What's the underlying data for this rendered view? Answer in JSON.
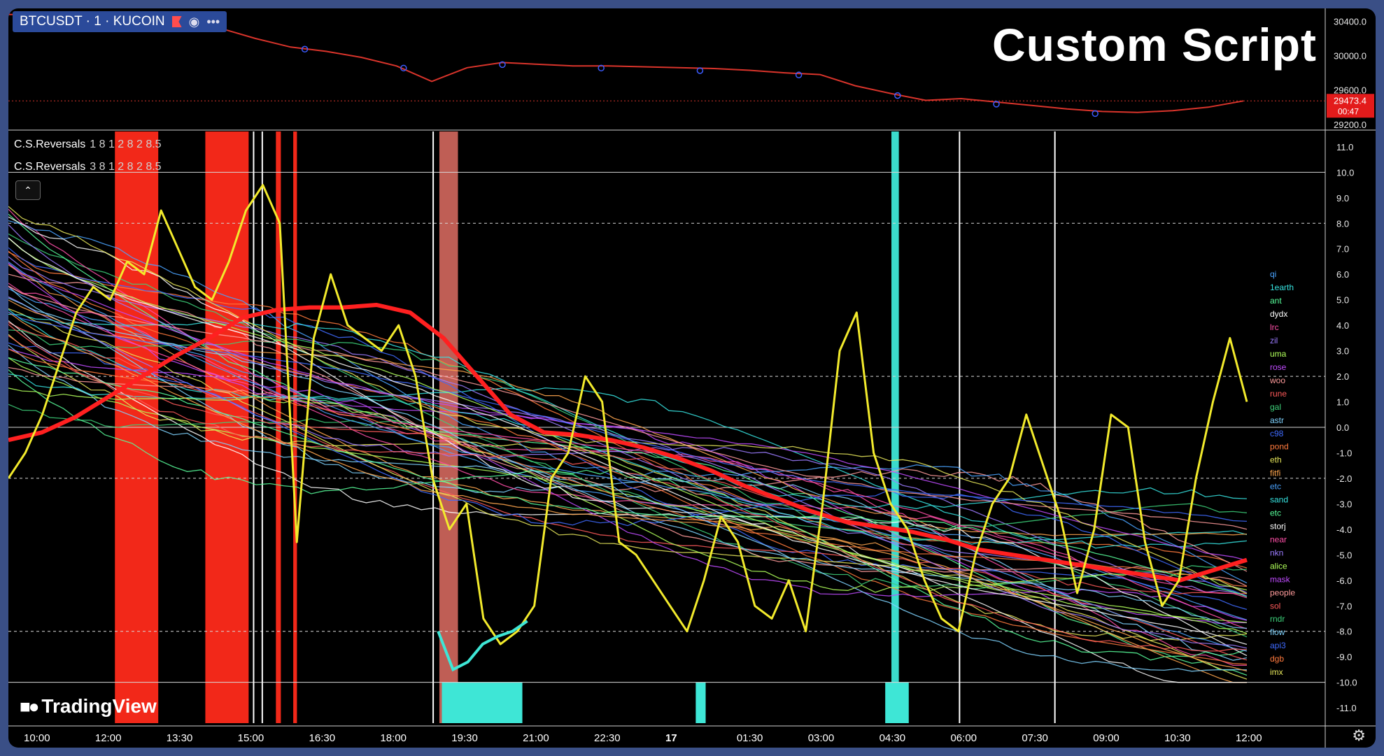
{
  "header": {
    "symbol": "BTCUSDT · 1 · KUCOIN",
    "title": "Custom Script",
    "price_badge": "29473.4",
    "countdown": "00:47"
  },
  "indicators": [
    {
      "name": "C.S.Reversals",
      "params": "1 8 1 2 8 2 8.5"
    },
    {
      "name": "C.S.Reversals",
      "params": "3 8 1 2 8 2 8.5"
    }
  ],
  "logo_text": "TradingView",
  "icons": [
    "flag-icon",
    "eye-icon",
    "more-icon",
    "chevron-up-icon",
    "gear-icon"
  ],
  "colors": {
    "background": "#000000",
    "price_line": "#d9342b",
    "composite_line": "#f2ea2c",
    "average_line": "#ff2020",
    "oversold_highlight": "#3ee6d6",
    "overbought_highlight": "#ff2a1a"
  },
  "chart_data": [
    {
      "type": "line",
      "series": [
        {
          "values": [
            30480,
            30470,
            30440,
            30420,
            30380,
            30360,
            30320,
            30200,
            30100,
            30050,
            29980,
            29880,
            29700,
            29860,
            29920,
            29900,
            29880,
            29880,
            29870,
            29860,
            29850,
            29830,
            29800,
            29780,
            29650,
            29560,
            29480,
            29500,
            29460,
            29420,
            29380,
            29350,
            29340,
            29360,
            29400,
            29473.4
          ]
        }
      ],
      "yticks": [
        30400.0,
        30000.0,
        29600.0,
        29200.0
      ],
      "ylim": [
        29150,
        30550
      ],
      "last_price": 29473.4
    },
    {
      "type": "line",
      "xticks": [
        "10:00",
        "12:00",
        "13:30",
        "15:00",
        "16:30",
        "18:00",
        "19:30",
        "21:00",
        "22:30",
        "17",
        "01:30",
        "03:00",
        "04:30",
        "06:00",
        "07:30",
        "09:00",
        "10:30",
        "12:00"
      ],
      "yticks": [
        11.0,
        10.0,
        9.0,
        8.0,
        7.0,
        6.0,
        5.0,
        4.0,
        3.0,
        2.0,
        1.0,
        0.0,
        -1.0,
        -2.0,
        -3.0,
        -4.0,
        -5.0,
        -6.0,
        -7.0,
        -8.0,
        -9.0,
        -10.0,
        -11.0
      ],
      "ylim": [
        -11.6,
        11.6
      ],
      "hlines": [
        10.0,
        8.0,
        2.0,
        0.0,
        -2.0,
        -8.0,
        -10.0
      ],
      "symbol_labels": [
        "qi",
        "1earth",
        "ant",
        "dydx",
        "lrc",
        "zil",
        "uma",
        "rose",
        "woo",
        "rune",
        "gal",
        "astr",
        "c98",
        "pond",
        "eth",
        "fitfi",
        "etc",
        "sand",
        "etc",
        "storj",
        "near",
        "nkn",
        "alice",
        "mask",
        "people",
        "sol",
        "rndr",
        "flow",
        "api3",
        "dgb",
        "imx"
      ],
      "series": [
        {
          "name": "composite",
          "values": [
            -2.0,
            -1.0,
            0.5,
            2.5,
            4.5,
            5.5,
            5.0,
            6.5,
            6.0,
            8.5,
            7.0,
            5.5,
            5.0,
            6.5,
            8.5,
            9.5,
            8.0,
            -4.5,
            3.5,
            6.0,
            4.0,
            3.5,
            3.0,
            4.0,
            2.0,
            -2.0,
            -4.0,
            -3.0,
            -7.5,
            -8.5,
            -8.0,
            -7.0,
            -2.0,
            -1.0,
            2.0,
            1.0,
            -4.5,
            -5.0,
            -6.0,
            -7.0,
            -8.0,
            -6.0,
            -3.5,
            -4.5,
            -7.0,
            -7.5,
            -6.0,
            -8.0,
            -3.0,
            3.0,
            4.5,
            -1.0,
            -3.0,
            -4.0,
            -6.0,
            -7.5,
            -8.0,
            -5.0,
            -3.0,
            -2.0,
            0.5,
            -1.5,
            -3.5,
            -6.5,
            -4.0,
            0.5,
            0.0,
            -4.5,
            -7.0,
            -6.0,
            -2.0,
            1.0,
            3.5,
            1.0
          ]
        },
        {
          "name": "average",
          "values": [
            -0.5,
            -0.2,
            0.4,
            1.2,
            2.0,
            2.8,
            3.5,
            4.3,
            4.6,
            4.7,
            4.7,
            4.8,
            4.5,
            3.5,
            2.0,
            0.5,
            -0.2,
            -0.3,
            -0.5,
            -0.8,
            -1.2,
            -1.7,
            -2.3,
            -2.8,
            -3.3,
            -3.7,
            -3.9,
            -4.1,
            -4.4,
            -4.8,
            -5.0,
            -5.2,
            -5.4,
            -5.6,
            -5.8,
            -6.0,
            -5.6,
            -5.2
          ]
        },
        {
          "name": "oversold",
          "values": [
            -8.0,
            -9.5,
            -9.2,
            -8.5,
            -8.2,
            -8.0,
            -7.6
          ]
        }
      ]
    }
  ]
}
